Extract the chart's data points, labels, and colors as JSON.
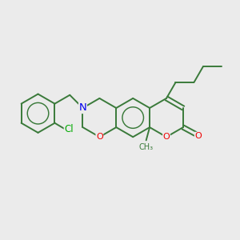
{
  "bg_color": "#ebebeb",
  "bond_color": "#3a7a3a",
  "N_color": "#0000ee",
  "O_color": "#ee0000",
  "Cl_color": "#00aa00",
  "line_width": 1.4,
  "double_lw": 1.4,
  "font_size": 8.5,
  "figsize": [
    3.0,
    3.0
  ],
  "dpi": 100,
  "xlim": [
    0,
    10
  ],
  "ylim": [
    0,
    10
  ]
}
